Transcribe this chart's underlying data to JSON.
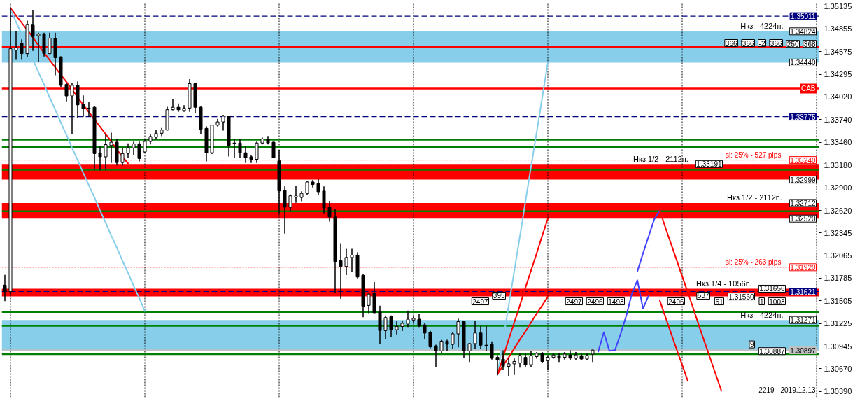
{
  "chart_data": {
    "type": "candlestick",
    "categories": [
      null,
      null,
      null,
      null,
      null,
      null,
      null,
      null,
      null,
      null,
      null,
      null,
      null,
      null,
      null,
      null,
      null,
      null,
      null,
      null,
      null,
      null,
      null,
      null,
      null,
      null,
      null,
      null,
      null,
      null,
      null,
      null,
      null,
      null,
      null,
      null,
      null,
      null,
      null,
      null,
      null,
      null,
      null,
      null,
      null,
      null,
      null,
      null,
      null,
      null,
      null,
      null,
      null,
      null,
      null,
      null,
      null,
      null,
      null,
      null,
      null,
      null,
      null,
      null,
      null,
      null,
      null,
      null,
      null,
      null,
      null,
      null,
      null,
      null,
      null,
      null,
      null,
      null,
      null,
      null,
      null,
      null,
      null,
      null,
      null,
      null,
      null,
      null,
      null,
      null,
      null,
      null,
      null,
      null,
      null,
      null,
      null,
      null,
      null,
      null,
      null,
      null,
      null,
      null,
      null,
      null,
      null,
      null,
      null,
      null,
      null,
      null,
      null,
      null,
      null,
      null,
      null,
      null,
      null,
      null,
      null,
      null,
      null,
      null,
      null,
      null,
      null,
      null,
      null,
      null,
      null,
      null,
      null,
      null,
      null,
      null,
      null,
      null,
      null,
      null,
      null,
      null,
      null,
      null,
      null,
      null
    ],
    "ohlc": [
      [
        1.317,
        1.3182,
        1.3151,
        1.3162
      ],
      [
        1.3162,
        1.351,
        1.3159,
        1.3461
      ],
      [
        1.3459,
        1.3482,
        1.3448,
        1.3462
      ],
      [
        1.3468,
        1.3472,
        1.3448,
        1.3455
      ],
      [
        1.3455,
        1.3495,
        1.3451,
        1.3491
      ],
      [
        1.3491,
        1.3508,
        1.3459,
        1.3476
      ],
      [
        1.3477,
        1.348,
        1.3445,
        1.3479
      ],
      [
        1.3479,
        1.348,
        1.3452,
        1.3455
      ],
      [
        1.3455,
        1.348,
        1.3455,
        1.3474
      ],
      [
        1.3474,
        1.348,
        1.3429,
        1.345
      ],
      [
        1.3451,
        1.3451,
        1.3414,
        1.3416
      ],
      [
        1.3417,
        1.3418,
        1.3397,
        1.3403
      ],
      [
        1.3403,
        1.3418,
        1.3357,
        1.3416
      ],
      [
        1.3416,
        1.342,
        1.3376,
        1.3392
      ],
      [
        1.3393,
        1.3403,
        1.3378,
        1.3387
      ],
      [
        1.3388,
        1.3395,
        1.3378,
        1.3387
      ],
      [
        1.3389,
        1.339,
        1.3312,
        1.3332
      ],
      [
        1.3333,
        1.334,
        1.3312,
        1.3328
      ],
      [
        1.3328,
        1.3355,
        1.3312,
        1.3343
      ],
      [
        1.3342,
        1.3357,
        1.3321,
        1.3346
      ],
      [
        1.3346,
        1.3349,
        1.3318,
        1.3321
      ],
      [
        1.3321,
        1.3338,
        1.3318,
        1.3332
      ],
      [
        1.3332,
        1.3344,
        1.3327,
        1.3339
      ],
      [
        1.3339,
        1.3346,
        1.3331,
        1.3344
      ],
      [
        1.3344,
        1.3346,
        1.3323,
        1.3326
      ],
      [
        1.3334,
        1.3349,
        1.3333,
        1.3347
      ],
      [
        1.3347,
        1.3355,
        1.3344,
        1.3353
      ],
      [
        1.3352,
        1.3361,
        1.335,
        1.3357
      ],
      [
        1.3357,
        1.3363,
        1.3354,
        1.3361
      ],
      [
        1.3361,
        1.3389,
        1.3361,
        1.3386
      ],
      [
        1.3386,
        1.3398,
        1.3386,
        1.3389
      ],
      [
        1.3389,
        1.3393,
        1.3384,
        1.3386
      ],
      [
        1.3385,
        1.3391,
        1.3384,
        1.3388
      ],
      [
        1.3388,
        1.3423,
        1.3384,
        1.3418
      ],
      [
        1.3418,
        1.3418,
        1.3382,
        1.3389
      ],
      [
        1.3389,
        1.339,
        1.3357,
        1.3362
      ],
      [
        1.3363,
        1.3365,
        1.3323,
        1.3333
      ],
      [
        1.3333,
        1.3367,
        1.3332,
        1.3367
      ],
      [
        1.3367,
        1.3374,
        1.3366,
        1.3371
      ],
      [
        1.3371,
        1.3379,
        1.3361,
        1.3378
      ],
      [
        1.3378,
        1.3378,
        1.3329,
        1.3342
      ],
      [
        1.3345,
        1.3349,
        1.3327,
        1.3344
      ],
      [
        1.3345,
        1.3349,
        1.3327,
        1.3333
      ],
      [
        1.3333,
        1.3341,
        1.3321,
        1.3327
      ],
      [
        1.3328,
        1.333,
        1.3321,
        1.3325
      ],
      [
        1.3325,
        1.3346,
        1.3321,
        1.3345
      ],
      [
        1.3345,
        1.3351,
        1.3344,
        1.335
      ],
      [
        1.335,
        1.3353,
        1.3344,
        1.3345
      ],
      [
        1.3346,
        1.3346,
        1.3327,
        1.3327
      ],
      [
        1.3323,
        1.3336,
        1.3259,
        1.3286
      ],
      [
        1.3287,
        1.3291,
        1.3234,
        1.3266
      ],
      [
        1.3266,
        1.3281,
        1.3261,
        1.328
      ],
      [
        1.3278,
        1.3292,
        1.3272,
        1.328
      ],
      [
        1.3278,
        1.3285,
        1.3274,
        1.3283
      ],
      [
        1.3283,
        1.3298,
        1.3282,
        1.3297
      ],
      [
        1.3297,
        1.3299,
        1.3291,
        1.3294
      ],
      [
        1.3295,
        1.33,
        1.3282,
        1.3285
      ],
      [
        1.3286,
        1.3291,
        1.3259,
        1.3265
      ],
      [
        1.3266,
        1.3273,
        1.3249,
        1.3254
      ],
      [
        1.3254,
        1.3263,
        1.3161,
        1.3199
      ],
      [
        1.32,
        1.3221,
        1.3154,
        1.3193
      ],
      [
        1.3193,
        1.3214,
        1.3183,
        1.3204
      ],
      [
        1.3204,
        1.3214,
        1.3187,
        1.3207
      ],
      [
        1.3207,
        1.321,
        1.3179,
        1.318
      ],
      [
        1.3182,
        1.3183,
        1.3131,
        1.3144
      ],
      [
        1.3145,
        1.3159,
        1.3136,
        1.3159
      ],
      [
        1.316,
        1.3173,
        1.3136,
        1.3136
      ],
      [
        1.3137,
        1.3144,
        1.3098,
        1.3114
      ],
      [
        1.3114,
        1.3132,
        1.3104,
        1.313
      ],
      [
        1.3131,
        1.3132,
        1.3107,
        1.3115
      ],
      [
        1.3115,
        1.3125,
        1.311,
        1.3119
      ],
      [
        1.3119,
        1.3125,
        1.3114,
        1.3123
      ],
      [
        1.3122,
        1.3138,
        1.3119,
        1.3128
      ],
      [
        1.3127,
        1.3132,
        1.3124,
        1.3129
      ],
      [
        1.3128,
        1.3134,
        1.3119,
        1.312
      ],
      [
        1.3121,
        1.3123,
        1.3104,
        1.3111
      ],
      [
        1.3112,
        1.3113,
        1.3093,
        1.3094
      ],
      [
        1.3095,
        1.3096,
        1.307,
        1.3089
      ],
      [
        1.3089,
        1.3102,
        1.3087,
        1.3101
      ],
      [
        1.3101,
        1.3102,
        1.3089,
        1.3097
      ],
      [
        1.3097,
        1.3111,
        1.3092,
        1.311
      ],
      [
        1.311,
        1.3128,
        1.3094,
        1.3125
      ],
      [
        1.3125,
        1.3125,
        1.3081,
        1.3089
      ],
      [
        1.3089,
        1.3098,
        1.3076,
        1.3098
      ],
      [
        1.3098,
        1.3125,
        1.3092,
        1.3111
      ],
      [
        1.3111,
        1.3119,
        1.3092,
        1.3096
      ],
      [
        1.3096,
        1.3119,
        1.309,
        1.3095
      ],
      [
        1.3097,
        1.31,
        1.3079,
        1.308
      ],
      [
        1.3081,
        1.3083,
        1.306,
        1.3078
      ],
      [
        1.3079,
        1.3089,
        1.3066,
        1.307
      ],
      [
        1.307,
        1.3079,
        1.3059,
        1.3073
      ],
      [
        1.3073,
        1.3079,
        1.306,
        1.3076
      ],
      [
        1.3074,
        1.3085,
        1.3069,
        1.3083
      ],
      [
        1.3081,
        1.3086,
        1.307,
        1.3072
      ],
      [
        1.3072,
        1.3088,
        1.307,
        1.3083
      ],
      [
        1.3082,
        1.3087,
        1.308,
        1.3086
      ],
      [
        1.3086,
        1.3087,
        1.3075,
        1.3076
      ],
      [
        1.3077,
        1.3083,
        1.3066,
        1.3081
      ],
      [
        1.3081,
        1.3086,
        1.308,
        1.3084
      ],
      [
        1.3083,
        1.3086,
        1.3076,
        1.308
      ],
      [
        1.3081,
        1.3087,
        1.3079,
        1.3085
      ],
      [
        1.3084,
        1.3089,
        1.3078,
        1.308
      ],
      [
        1.308,
        1.3087,
        1.3078,
        1.3084
      ],
      [
        1.3083,
        1.3085,
        1.3078,
        1.3079
      ],
      [
        1.3079,
        1.3085,
        1.3078,
        1.3083
      ],
      [
        1.3085,
        1.309,
        1.3076,
        1.309
      ],
      null,
      null,
      null,
      null,
      null,
      null,
      null,
      null,
      null,
      null,
      null,
      null,
      null,
      null,
      null,
      null,
      null,
      null,
      null,
      null,
      null,
      null,
      null,
      null,
      null,
      null,
      null,
      null,
      null,
      null,
      null,
      null,
      null,
      null,
      null,
      null,
      null,
      null,
      null,
      null
    ],
    "series": [
      {
        "type": "line",
        "color": "#ff0000",
        "values": [
          null,
          1.3511,
          1.3502,
          1.3493,
          1.3484,
          1.3475,
          1.3465,
          1.3456,
          1.3447,
          1.3438,
          1.3429,
          1.342,
          1.3411,
          1.3401,
          1.3392,
          1.3383,
          1.3374,
          1.3365,
          1.3356,
          1.3347,
          1.3337,
          1.3328,
          1.332,
          null,
          null,
          null,
          null,
          null,
          null,
          null,
          null,
          null,
          null,
          null,
          null,
          null,
          null,
          null,
          null,
          null,
          null,
          null,
          null,
          null,
          null,
          null,
          null,
          null,
          null,
          null,
          null,
          null,
          null,
          null,
          null,
          null,
          null,
          null,
          null,
          null,
          null,
          null,
          null,
          null,
          null,
          null,
          null,
          null,
          null,
          null,
          null,
          null,
          null,
          null,
          null,
          null,
          null,
          null,
          null,
          null,
          null,
          null,
          null,
          null,
          null,
          null,
          null,
          null,
          null,
          null,
          null,
          null,
          null,
          null,
          null,
          null,
          null,
          null,
          null,
          null,
          null,
          null,
          null,
          null,
          null,
          null,
          null,
          null,
          null,
          null,
          null,
          null,
          null,
          null,
          null,
          null,
          null,
          null,
          null,
          null,
          null,
          null,
          null,
          null,
          null,
          null,
          null,
          null,
          null,
          null,
          null,
          null,
          null,
          null,
          null,
          null,
          null,
          null,
          null,
          null,
          null,
          null,
          null,
          null,
          null,
          null
        ]
      },
      {
        "type": "line",
        "color": "#87ceeb",
        "values": [
          null,
          1.3509,
          1.3494,
          1.3479,
          1.3463,
          1.3448,
          1.3432,
          1.3417,
          1.3401,
          1.3386,
          1.337,
          1.3355,
          1.3339,
          1.3324,
          1.3308,
          1.3293,
          1.3278,
          1.3262,
          1.3247,
          1.3231,
          1.3216,
          1.32,
          1.3185,
          1.3169,
          1.3154,
          1.3138,
          null,
          null,
          null,
          null,
          null,
          null,
          null,
          null,
          null,
          null,
          null,
          null,
          null,
          null,
          null,
          null,
          null,
          null,
          null,
          null,
          null,
          null,
          null,
          null,
          null,
          null,
          null,
          null,
          null,
          null,
          null,
          null,
          null,
          null,
          null,
          null,
          null,
          null,
          null,
          null,
          null,
          null,
          null,
          null,
          null,
          null,
          null,
          null,
          null,
          null,
          null,
          null,
          null,
          null,
          null,
          null,
          null,
          null,
          null,
          null,
          null,
          null,
          null,
          null,
          null,
          null,
          null,
          null,
          null,
          null,
          null,
          null,
          null,
          null,
          null,
          null,
          null,
          null,
          null,
          null,
          null,
          null,
          null,
          null,
          null,
          null,
          null,
          null,
          null,
          null,
          null,
          null,
          null,
          null,
          null,
          null,
          null,
          null,
          null,
          null,
          null,
          null,
          null,
          null,
          null,
          null,
          null,
          null,
          null,
          null,
          null,
          null,
          null,
          null,
          null,
          null,
          null,
          null,
          null,
          null
        ]
      },
      {
        "type": "line",
        "color": "#87ceeb",
        "values": [
          null,
          null,
          null,
          null,
          null,
          null,
          null,
          null,
          null,
          null,
          null,
          null,
          null,
          null,
          null,
          null,
          null,
          null,
          null,
          null,
          null,
          null,
          null,
          null,
          null,
          null,
          null,
          null,
          null,
          null,
          null,
          null,
          null,
          null,
          null,
          null,
          null,
          null,
          null,
          null,
          null,
          null,
          null,
          null,
          null,
          null,
          null,
          null,
          null,
          null,
          null,
          null,
          null,
          null,
          null,
          null,
          null,
          null,
          null,
          null,
          null,
          null,
          null,
          null,
          null,
          null,
          null,
          null,
          null,
          null,
          null,
          null,
          null,
          null,
          null,
          null,
          null,
          null,
          null,
          null,
          null,
          null,
          null,
          null,
          null,
          null,
          null,
          null,
          1.3059,
          1.3102,
          1.3145,
          1.3187,
          1.323,
          1.3273,
          1.3316,
          1.3358,
          1.3401,
          1.3444,
          null,
          null,
          null,
          null,
          null,
          null,
          null,
          null,
          null,
          null,
          null,
          null,
          null,
          null,
          null,
          null,
          null,
          null,
          null,
          null,
          null,
          null,
          null,
          null,
          null,
          null,
          null,
          null,
          null,
          null,
          null,
          null,
          null,
          null,
          null,
          null,
          null,
          null,
          null,
          null,
          null,
          null,
          null,
          null,
          null,
          null,
          null,
          null
        ]
      },
      {
        "type": "line",
        "color": "#ff0000",
        "values": [
          null,
          null,
          null,
          null,
          null,
          null,
          null,
          null,
          null,
          null,
          null,
          null,
          null,
          null,
          null,
          null,
          null,
          null,
          null,
          null,
          null,
          null,
          null,
          null,
          null,
          null,
          null,
          null,
          null,
          null,
          null,
          null,
          null,
          null,
          null,
          null,
          null,
          null,
          null,
          null,
          null,
          null,
          null,
          null,
          null,
          null,
          null,
          null,
          null,
          null,
          null,
          null,
          null,
          null,
          null,
          null,
          null,
          null,
          null,
          null,
          null,
          null,
          null,
          null,
          null,
          null,
          null,
          null,
          null,
          null,
          null,
          null,
          null,
          null,
          null,
          null,
          null,
          null,
          null,
          null,
          null,
          null,
          null,
          null,
          null,
          null,
          null,
          null,
          1.306,
          1.3081,
          1.3103,
          1.3124,
          1.3145,
          1.3167,
          1.3188,
          1.3209,
          1.3231,
          1.3252,
          null,
          null,
          null,
          null,
          null,
          null,
          null,
          null,
          null,
          null,
          null,
          null,
          null,
          null,
          null,
          null,
          null,
          null,
          null,
          null,
          null,
          null,
          null,
          null,
          null,
          null,
          null,
          null,
          null,
          null,
          null,
          null,
          null,
          null,
          null,
          null,
          null,
          null,
          null,
          null,
          null,
          null,
          null,
          null,
          null,
          null,
          null,
          null
        ]
      },
      {
        "type": "line",
        "color": "#ff0000",
        "values": [
          null,
          null,
          null,
          null,
          null,
          null,
          null,
          null,
          null,
          null,
          null,
          null,
          null,
          null,
          null,
          null,
          null,
          null,
          null,
          null,
          null,
          null,
          null,
          null,
          null,
          null,
          null,
          null,
          null,
          null,
          null,
          null,
          null,
          null,
          null,
          null,
          null,
          null,
          null,
          null,
          null,
          null,
          null,
          null,
          null,
          null,
          null,
          null,
          null,
          null,
          null,
          null,
          null,
          null,
          null,
          null,
          null,
          null,
          null,
          null,
          null,
          null,
          null,
          null,
          null,
          null,
          null,
          null,
          null,
          null,
          null,
          null,
          null,
          null,
          null,
          null,
          null,
          null,
          null,
          null,
          null,
          null,
          null,
          null,
          null,
          null,
          null,
          null,
          1.306,
          1.3071,
          1.3081,
          1.3092,
          1.3103,
          1.3113,
          1.3124,
          1.3135,
          1.3145,
          1.3156,
          null,
          null,
          null,
          null,
          null,
          null,
          null,
          null,
          null,
          null,
          null,
          null,
          null,
          null,
          null,
          null,
          null,
          null,
          null,
          null,
          null,
          null,
          null,
          null,
          null,
          null,
          null,
          null,
          null,
          null,
          null,
          null,
          null,
          null,
          null,
          null,
          null,
          null,
          null,
          null,
          null,
          null,
          null,
          null,
          null,
          null,
          null,
          null
        ]
      },
      {
        "type": "line",
        "color": "#4040ff",
        "values": [
          null,
          null,
          null,
          null,
          null,
          null,
          null,
          null,
          null,
          null,
          null,
          null,
          null,
          null,
          null,
          null,
          null,
          null,
          null,
          null,
          null,
          null,
          null,
          null,
          null,
          null,
          null,
          null,
          null,
          null,
          null,
          null,
          null,
          null,
          null,
          null,
          null,
          null,
          null,
          null,
          null,
          null,
          null,
          null,
          null,
          null,
          null,
          null,
          null,
          null,
          null,
          null,
          null,
          null,
          null,
          null,
          null,
          null,
          null,
          null,
          null,
          null,
          null,
          null,
          null,
          null,
          null,
          null,
          null,
          null,
          null,
          null,
          null,
          null,
          null,
          null,
          null,
          null,
          null,
          null,
          null,
          null,
          null,
          null,
          null,
          null,
          null,
          null,
          null,
          null,
          null,
          null,
          null,
          null,
          null,
          null,
          null,
          null,
          null,
          null,
          null,
          null,
          null,
          null,
          null,
          null,
          1.3088,
          1.3112,
          1.3089,
          1.309,
          1.311,
          1.3132,
          1.3159,
          1.3176,
          1.3141,
          1.3157,
          null,
          null,
          null,
          null,
          null,
          null,
          null,
          null,
          null,
          null,
          null,
          null,
          null,
          null,
          null,
          null,
          null,
          null,
          null,
          null,
          null,
          null,
          null,
          null,
          null,
          null,
          null,
          null,
          null,
          null
        ]
      },
      {
        "type": "line",
        "color": "#4040ff",
        "values": [
          null,
          null,
          null,
          null,
          null,
          null,
          null,
          null,
          null,
          null,
          null,
          null,
          null,
          null,
          null,
          null,
          null,
          null,
          null,
          null,
          null,
          null,
          null,
          null,
          null,
          null,
          null,
          null,
          null,
          null,
          null,
          null,
          null,
          null,
          null,
          null,
          null,
          null,
          null,
          null,
          null,
          null,
          null,
          null,
          null,
          null,
          null,
          null,
          null,
          null,
          null,
          null,
          null,
          null,
          null,
          null,
          null,
          null,
          null,
          null,
          null,
          null,
          null,
          null,
          null,
          null,
          null,
          null,
          null,
          null,
          null,
          null,
          null,
          null,
          null,
          null,
          null,
          null,
          null,
          null,
          null,
          null,
          null,
          null,
          null,
          null,
          null,
          null,
          null,
          null,
          null,
          null,
          null,
          null,
          null,
          null,
          null,
          null,
          null,
          null,
          null,
          null,
          null,
          null,
          null,
          null,
          null,
          null,
          null,
          null,
          null,
          null,
          null,
          1.3187,
          1.3209,
          1.323,
          1.3251,
          1.3262,
          null,
          null,
          null,
          null,
          null,
          null,
          null,
          null,
          null,
          null,
          null,
          null,
          null,
          null,
          null,
          null,
          null,
          null,
          null,
          null,
          null,
          null,
          null,
          null,
          null,
          null,
          null,
          null
        ]
      },
      {
        "type": "line",
        "color": "#ff0000",
        "values": [
          null,
          null,
          null,
          null,
          null,
          null,
          null,
          null,
          null,
          null,
          null,
          null,
          null,
          null,
          null,
          null,
          null,
          null,
          null,
          null,
          null,
          null,
          null,
          null,
          null,
          null,
          null,
          null,
          null,
          null,
          null,
          null,
          null,
          null,
          null,
          null,
          null,
          null,
          null,
          null,
          null,
          null,
          null,
          null,
          null,
          null,
          null,
          null,
          null,
          null,
          null,
          null,
          null,
          null,
          null,
          null,
          null,
          null,
          null,
          null,
          null,
          null,
          null,
          null,
          null,
          null,
          null,
          null,
          null,
          null,
          null,
          null,
          null,
          null,
          null,
          null,
          null,
          null,
          null,
          null,
          null,
          null,
          null,
          null,
          null,
          null,
          null,
          null,
          null,
          null,
          null,
          null,
          null,
          null,
          null,
          null,
          null,
          null,
          null,
          null,
          null,
          null,
          null,
          null,
          null,
          null,
          null,
          null,
          null,
          null,
          null,
          null,
          null,
          null,
          null,
          null,
          null,
          1.3262,
          1.3241,
          1.3221,
          1.3201,
          1.3181,
          1.3161,
          1.3141,
          1.312,
          1.31,
          1.308,
          1.306,
          1.304,
          null,
          null,
          null,
          null,
          null,
          null,
          null,
          null,
          null,
          null,
          null,
          null,
          null,
          null,
          null,
          null,
          null
        ]
      },
      {
        "type": "line",
        "color": "#ff0000",
        "values": [
          null,
          null,
          null,
          null,
          null,
          null,
          null,
          null,
          null,
          null,
          null,
          null,
          null,
          null,
          null,
          null,
          null,
          null,
          null,
          null,
          null,
          null,
          null,
          null,
          null,
          null,
          null,
          null,
          null,
          null,
          null,
          null,
          null,
          null,
          null,
          null,
          null,
          null,
          null,
          null,
          null,
          null,
          null,
          null,
          null,
          null,
          null,
          null,
          null,
          null,
          null,
          null,
          null,
          null,
          null,
          null,
          null,
          null,
          null,
          null,
          null,
          null,
          null,
          null,
          null,
          null,
          null,
          null,
          null,
          null,
          null,
          null,
          null,
          null,
          null,
          null,
          null,
          null,
          null,
          null,
          null,
          null,
          null,
          null,
          null,
          null,
          null,
          null,
          null,
          null,
          null,
          null,
          null,
          null,
          null,
          null,
          null,
          null,
          null,
          null,
          null,
          null,
          null,
          null,
          null,
          null,
          null,
          null,
          null,
          null,
          null,
          null,
          null,
          null,
          null,
          null,
          null,
          1.3151,
          1.3131,
          1.3111,
          1.3091,
          1.3072,
          1.3052,
          null,
          null,
          null,
          null,
          null,
          null,
          null,
          null,
          null,
          null,
          null,
          null,
          null,
          null,
          null,
          null,
          null,
          null,
          null,
          null,
          null,
          null,
          null
        ]
      }
    ],
    "ylim": [
      1.3032,
      1.3518
    ],
    "yticks": [
      1.35135,
      1.34855,
      1.34575,
      1.34295,
      {
        "value": 1.3402,
        "label": "1.34020"
      },
      {
        "value": 1.3374,
        "label": "1.33740"
      },
      {
        "value": 1.3346,
        "label": "1.33460"
      },
      {
        "value": 1.3318,
        "label": "1.33180"
      },
      {
        "value": 1.329,
        "label": "1.32900"
      },
      {
        "value": 1.3262,
        "label": "1.32620"
      },
      1.32345,
      1.32065,
      1.31785,
      1.31505,
      1.31225,
      1.30945,
      {
        "value": 1.3067,
        "label": "1.30670"
      },
      {
        "value": 1.3039,
        "label": "1.30390"
      }
    ],
    "tick_labels": "y",
    "ref_lines": [
      {
        "axis": "y",
        "value": 1.35011,
        "label": "1.35011",
        "color": "#000080",
        "line_style": "dashed"
      },
      {
        "axis": "y",
        "value": 1.33775,
        "label": "1.33775",
        "color": "#000080",
        "line_style": "dashed"
      },
      {
        "axis": "y",
        "value": 1.31621,
        "label": "1.31621",
        "color": "#000080",
        "line_style": "dashed"
      },
      {
        "axis": "y",
        "value": 1.30897,
        "label": "1.30897",
        "color": "#c0c0c0",
        "line_style": "solid"
      },
      {
        "axis": "y",
        "value": 1.3463,
        "color": "#ff0000",
        "line_style": "solid"
      },
      {
        "axis": "y",
        "value": 1.3412,
        "label": "CAB",
        "color": "#ff0000",
        "line_style": "solid"
      },
      {
        "axis": "y",
        "value": 1.3324,
        "label": "1.33240",
        "color": "#ff0000",
        "line_style": "dotted"
      },
      {
        "axis": "y",
        "value": 1.3192,
        "label": "1.31920",
        "color": "#ff0000",
        "line_style": "dotted"
      },
      {
        "axis": "y",
        "value": 1.3349,
        "color": "#008000",
        "line_style": "solid"
      },
      {
        "axis": "y",
        "value": 1.334,
        "color": "#008000",
        "line_style": "solid"
      },
      {
        "axis": "y",
        "value": 1.3312,
        "color": "#008000",
        "line_style": "solid"
      },
      {
        "axis": "y",
        "value": 1.3261,
        "color": "#008000",
        "line_style": "solid"
      },
      {
        "axis": "y",
        "value": 1.3137,
        "color": "#008000",
        "line_style": "solid"
      },
      {
        "axis": "y",
        "value": 1.312,
        "color": "#008000",
        "line_style": "solid"
      },
      {
        "axis": "y",
        "value": 1.3085,
        "color": "#008000",
        "line_style": "solid"
      }
    ],
    "bands": [
      {
        "axis": "y",
        "from": 1.3444,
        "to": 1.34824,
        "label": "Нкз - 4224п.",
        "color": "#87ceeb"
      },
      {
        "axis": "y",
        "from": 1.32999,
        "to": 1.33191,
        "label": "Нкз 1/2 - 2112п.",
        "color": "#ff0000"
      },
      {
        "axis": "y",
        "from": 1.3252,
        "to": 1.32712,
        "label": "Нкз 1/2 - 2112п.",
        "color": "#ff0000"
      },
      {
        "axis": "y",
        "from": 1.3156,
        "to": 1.31656,
        "label": "Нкз 1/4 - 1056п.",
        "color": "#ff0000"
      },
      {
        "axis": "y",
        "from": 1.30887,
        "to": 1.31271,
        "label": "Нкз - 4224п.",
        "color": "#87ceeb"
      }
    ],
    "annotations": [
      {
        "text": "1.34824",
        "y": 1.34824
      },
      {
        "text": "1.34440",
        "y": 1.3444
      },
      {
        "text": "sl: 25% - 527 pips",
        "y": 1.3324
      },
      {
        "text": "1.33191",
        "y": 1.33191
      },
      {
        "text": "1.32999",
        "y": 1.32999
      },
      {
        "text": "1.32712",
        "y": 1.32712
      },
      {
        "text": "1.32520",
        "y": 1.3252
      },
      {
        "text": "sl: 25% - 263 pips",
        "y": 1.3192
      },
      {
        "text": "1.31656",
        "y": 1.31656
      },
      {
        "text": "1.31560",
        "y": 1.3156
      },
      {
        "text": "1.31271",
        "y": 1.31271
      },
      {
        "text": "1.30887",
        "y": 1.30887
      },
      {
        "text": "368",
        "y": 1.3467
      },
      {
        "text": "250",
        "y": 1.3467
      },
      {
        "text": "366",
        "y": 1.3468
      },
      {
        "text": "-2",
        "y": 1.3468
      },
      {
        "text": "366",
        "y": 1.3468
      },
      {
        "text": "366",
        "y": 1.3468
      },
      {
        "text": "1003",
        "y": 1.315
      },
      {
        "text": "51",
        "y": 1.315
      },
      {
        "text": "2496",
        "y": 1.315
      },
      {
        "text": "1493",
        "y": 1.315
      },
      {
        "text": "2496",
        "y": 1.315
      },
      {
        "text": "2497",
        "y": 1.315
      },
      {
        "text": "1",
        "y": 1.315
      },
      {
        "text": "537",
        "y": 1.3157
      },
      {
        "text": "395",
        "y": 1.3157
      },
      {
        "text": "2497",
        "y": 1.315
      },
      {
        "text": "9",
        "y": 1.3097
      },
      "2219 - 2019.12.13"
    ]
  }
}
